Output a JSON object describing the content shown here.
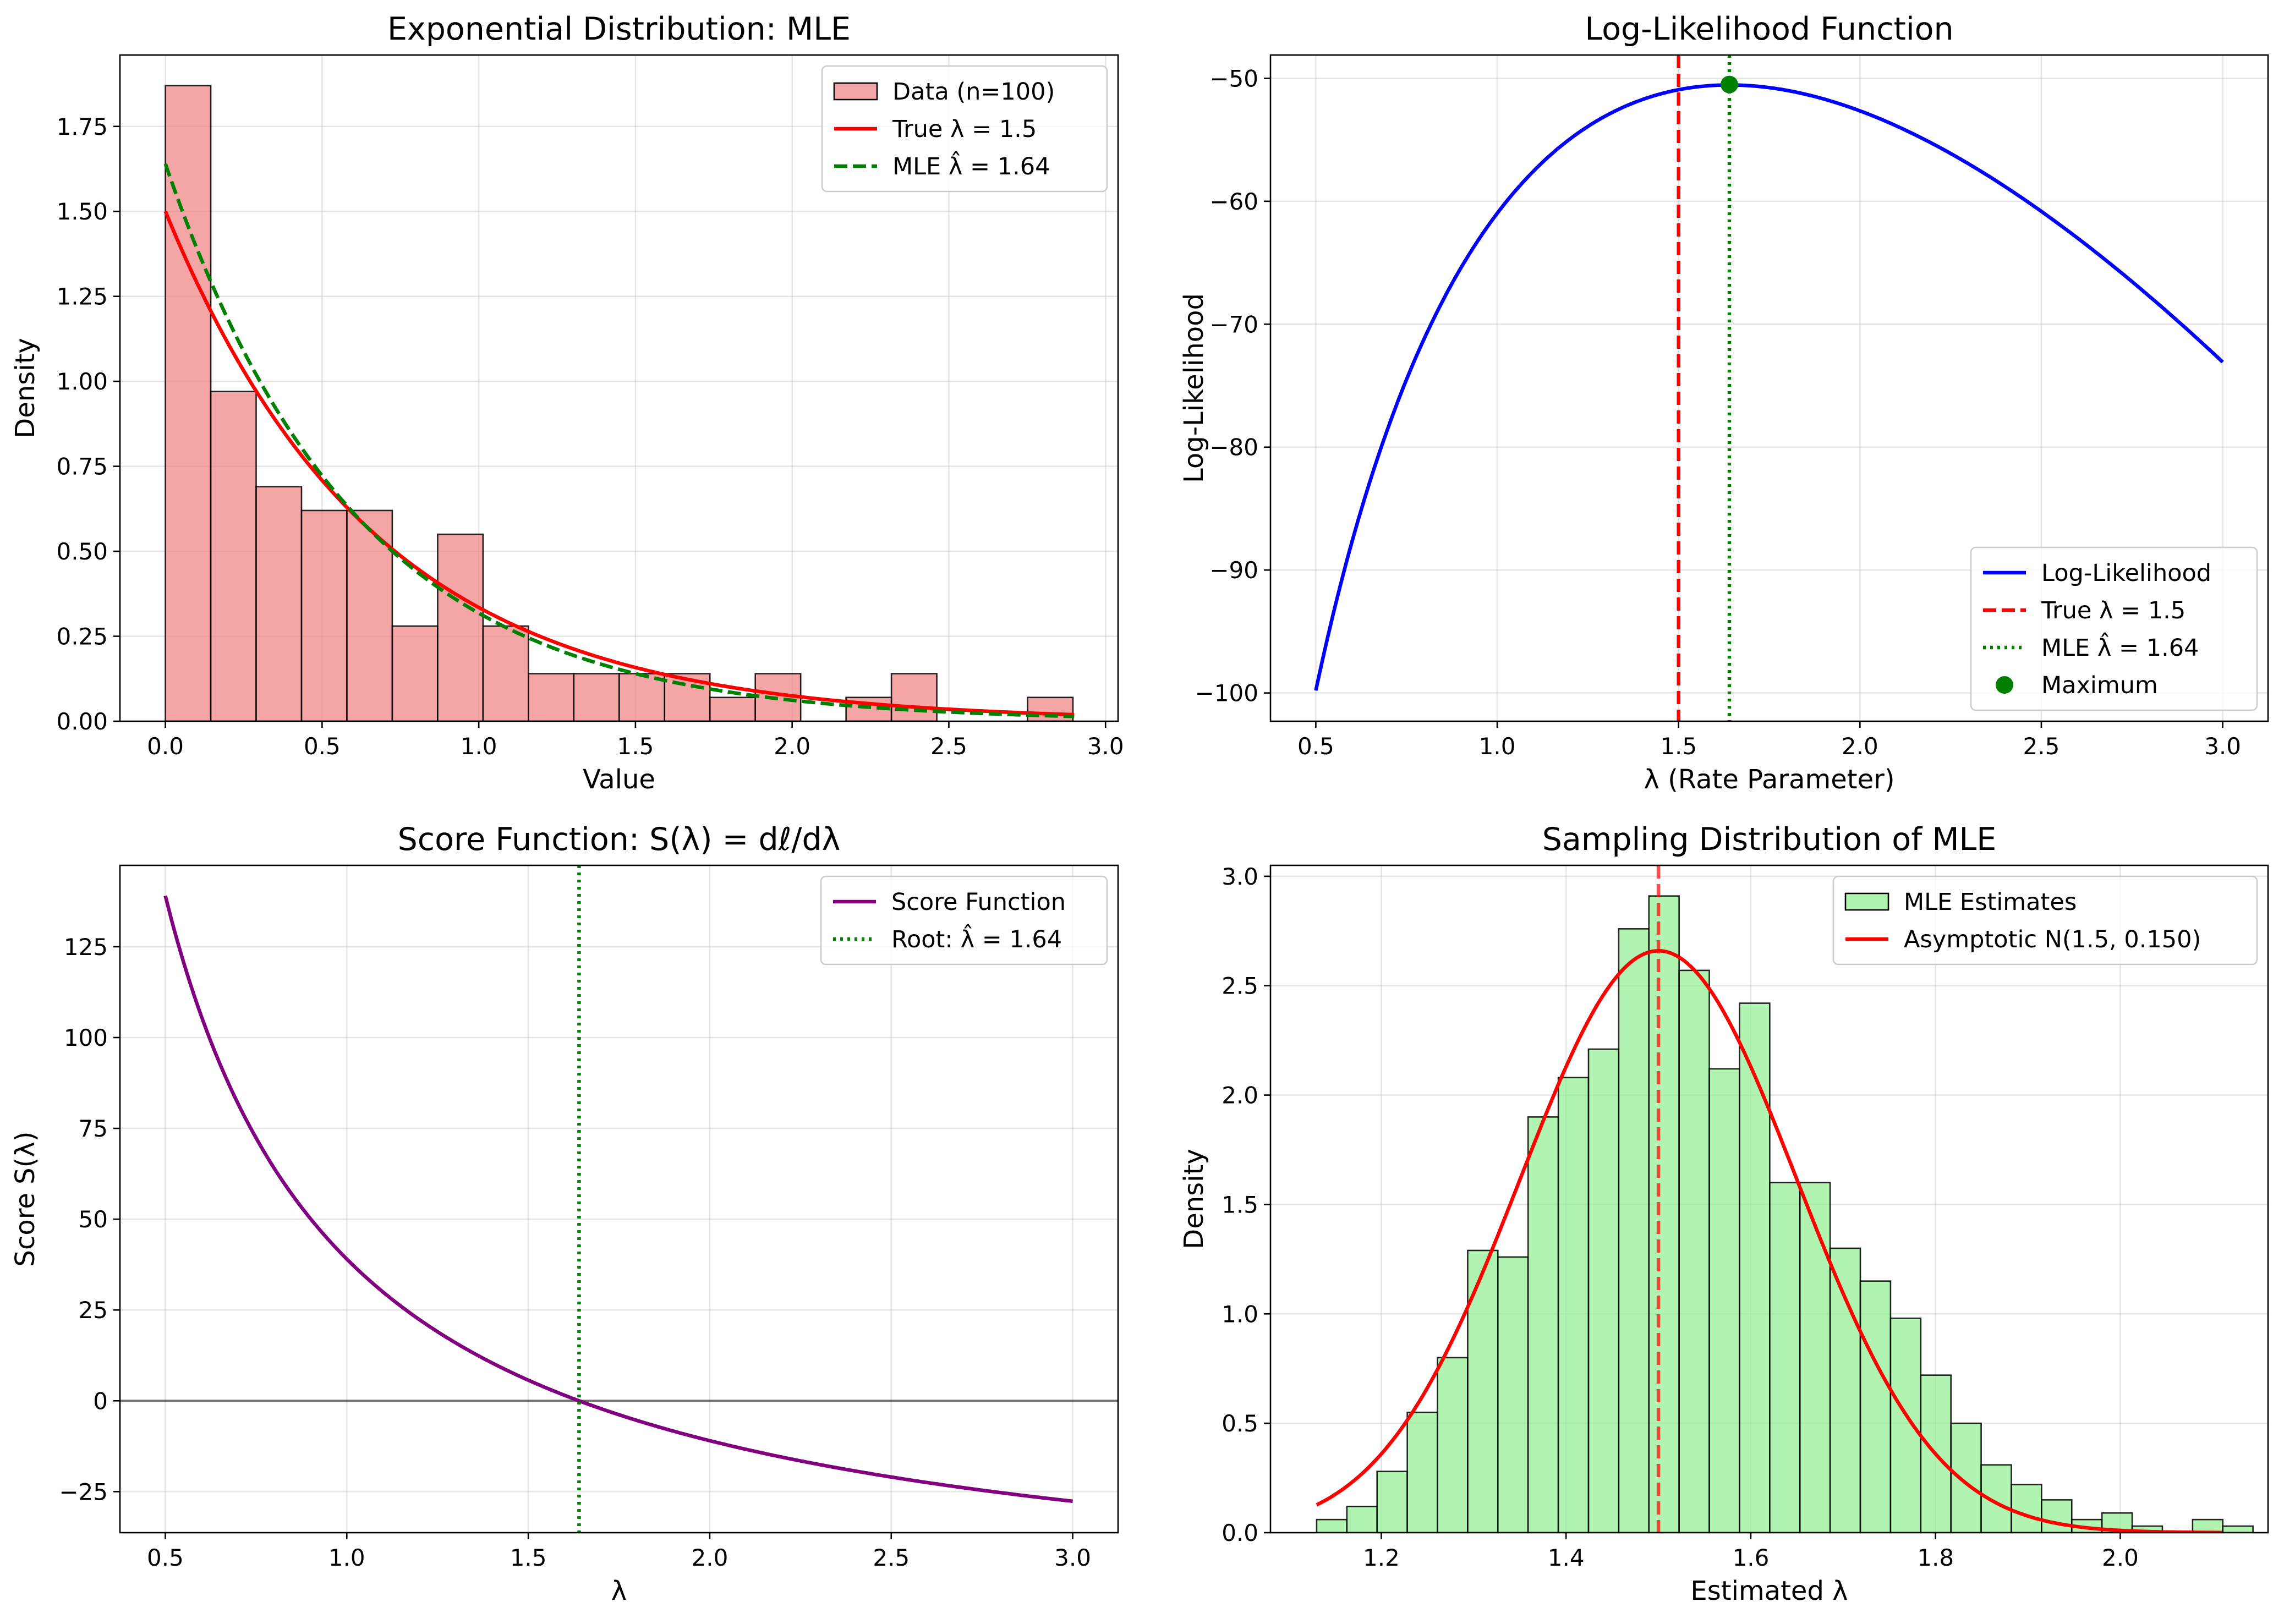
{
  "chart_data": [
    {
      "type": "bar",
      "title": "Exponential Distribution: MLE",
      "xlabel": "Value",
      "ylabel": "Density",
      "xlim": [
        -0.145,
        3.04
      ],
      "ylim": [
        0,
        1.96
      ],
      "xticks": [
        0.0,
        0.5,
        1.0,
        1.5,
        2.0,
        2.5,
        3.0
      ],
      "xtick_labels": [
        "0.0",
        "0.5",
        "1.0",
        "1.5",
        "2.0",
        "2.5",
        "3.0"
      ],
      "yticks": [
        0.0,
        0.25,
        0.5,
        0.75,
        1.0,
        1.25,
        1.5,
        1.75
      ],
      "ytick_labels": [
        "0.00",
        "0.25",
        "0.50",
        "0.75",
        "1.00",
        "1.25",
        "1.50",
        "1.75"
      ],
      "grid": true,
      "legend_position": "top-right",
      "histogram": {
        "name": "Data (n=100)",
        "color": "#f08080",
        "bin_start": 0.0,
        "bin_width": 0.1448,
        "values": [
          1.87,
          0.97,
          0.69,
          0.62,
          0.62,
          0.28,
          0.55,
          0.28,
          0.14,
          0.14,
          0.14,
          0.14,
          0.07,
          0.14,
          0.0,
          0.07,
          0.14,
          0.0,
          0.0,
          0.07
        ]
      },
      "curves": [
        {
          "name": "True λ = 1.5",
          "kind": "exp_pdf",
          "rate": 1.5,
          "x_range": [
            0,
            2.9
          ],
          "color": "#ff0000",
          "dash": "solid"
        },
        {
          "name": "MLE λ̂ = 1.64",
          "kind": "exp_pdf",
          "rate": 1.64,
          "x_range": [
            0,
            2.9
          ],
          "color": "#008000",
          "dash": "dashed"
        }
      ]
    },
    {
      "type": "line",
      "title": "Log-Likelihood Function",
      "xlabel": "λ (Rate Parameter)",
      "ylabel": "Log-Likelihood",
      "xlim": [
        0.375,
        3.125
      ],
      "ylim": [
        -102.3,
        -48.1
      ],
      "xticks": [
        0.5,
        1.0,
        1.5,
        2.0,
        2.5,
        3.0
      ],
      "xtick_labels": [
        "0.5",
        "1.0",
        "1.5",
        "2.0",
        "2.5",
        "3.0"
      ],
      "yticks": [
        -100,
        -90,
        -80,
        -70,
        -60,
        -50
      ],
      "ytick_labels": [
        "−100",
        "−90",
        "−80",
        "−70",
        "−60",
        "−50"
      ],
      "grid": true,
      "legend_position": "bottom-right",
      "series": [
        {
          "name": "Log-Likelihood",
          "kind": "loglik",
          "n": 100,
          "sum_x": 60.98,
          "x_range": [
            0.5,
            3.0
          ],
          "color": "#0000ff",
          "dash": "solid"
        }
      ],
      "vlines": [
        {
          "name": "True λ = 1.5",
          "x": 1.5,
          "color": "#ff0000",
          "dash": "dashed"
        },
        {
          "name": "MLE λ̂ = 1.64",
          "x": 1.64,
          "color": "#008000",
          "dash": "dotted"
        }
      ],
      "points": [
        {
          "name": "Maximum",
          "x": 1.64,
          "y": -50.5,
          "color": "#008000"
        }
      ]
    },
    {
      "type": "line",
      "title": "Score Function: S(λ) = dℓ/dλ",
      "xlabel": "λ",
      "ylabel": "Score S(λ)",
      "xlim": [
        0.375,
        3.125
      ],
      "ylim": [
        -36.3,
        147.4
      ],
      "xticks": [
        0.5,
        1.0,
        1.5,
        2.0,
        2.5,
        3.0
      ],
      "xtick_labels": [
        "0.5",
        "1.0",
        "1.5",
        "2.0",
        "2.5",
        "3.0"
      ],
      "yticks": [
        -25,
        0,
        25,
        50,
        75,
        100,
        125
      ],
      "ytick_labels": [
        "−25",
        "0",
        "25",
        "50",
        "75",
        "100",
        "125"
      ],
      "grid": true,
      "legend_position": "top-right",
      "series": [
        {
          "name": "Score Function",
          "kind": "score",
          "n": 100,
          "sum_x": 60.98,
          "x_range": [
            0.5,
            3.0
          ],
          "color": "#800080",
          "dash": "solid"
        }
      ],
      "hlines": [
        {
          "y": 0,
          "color": "#000000",
          "opacity": 0.5
        }
      ],
      "vlines": [
        {
          "name": "Root: λ̂ = 1.64",
          "x": 1.64,
          "color": "#008000",
          "dash": "dotted"
        }
      ]
    },
    {
      "type": "bar",
      "title": "Sampling Distribution of MLE",
      "xlabel": "Estimated λ",
      "ylabel": "Density",
      "xlim": [
        1.08,
        2.16
      ],
      "ylim": [
        0,
        3.05
      ],
      "xticks": [
        1.2,
        1.4,
        1.6,
        1.8,
        2.0
      ],
      "xtick_labels": [
        "1.2",
        "1.4",
        "1.6",
        "1.8",
        "2.0"
      ],
      "yticks": [
        0.0,
        0.5,
        1.0,
        1.5,
        2.0,
        2.5,
        3.0
      ],
      "ytick_labels": [
        "0.0",
        "0.5",
        "1.0",
        "1.5",
        "2.0",
        "2.5",
        "3.0"
      ],
      "grid": true,
      "legend_position": "top-right",
      "histogram": {
        "name": "MLE Estimates",
        "color": "#90ee90",
        "bin_start": 1.13,
        "bin_width": 0.0327,
        "values": [
          0.06,
          0.12,
          0.28,
          0.55,
          0.8,
          1.29,
          1.26,
          1.9,
          2.08,
          2.21,
          2.76,
          2.91,
          2.57,
          2.12,
          2.42,
          1.6,
          1.6,
          1.3,
          1.15,
          0.98,
          0.72,
          0.5,
          0.31,
          0.22,
          0.15,
          0.06,
          0.09,
          0.03,
          0.0,
          0.06,
          0.03
        ]
      },
      "curves": [
        {
          "name": "Asymptotic N(1.5, 0.150)",
          "kind": "normal_pdf",
          "mu": 1.5,
          "sigma": 0.15,
          "x_range": [
            1.13,
            2.11
          ],
          "color": "#ff0000",
          "dash": "solid"
        }
      ],
      "vlines": [
        {
          "x": 1.5,
          "color": "#ff0000",
          "dash": "dashed",
          "opacity": 0.7
        }
      ]
    }
  ]
}
